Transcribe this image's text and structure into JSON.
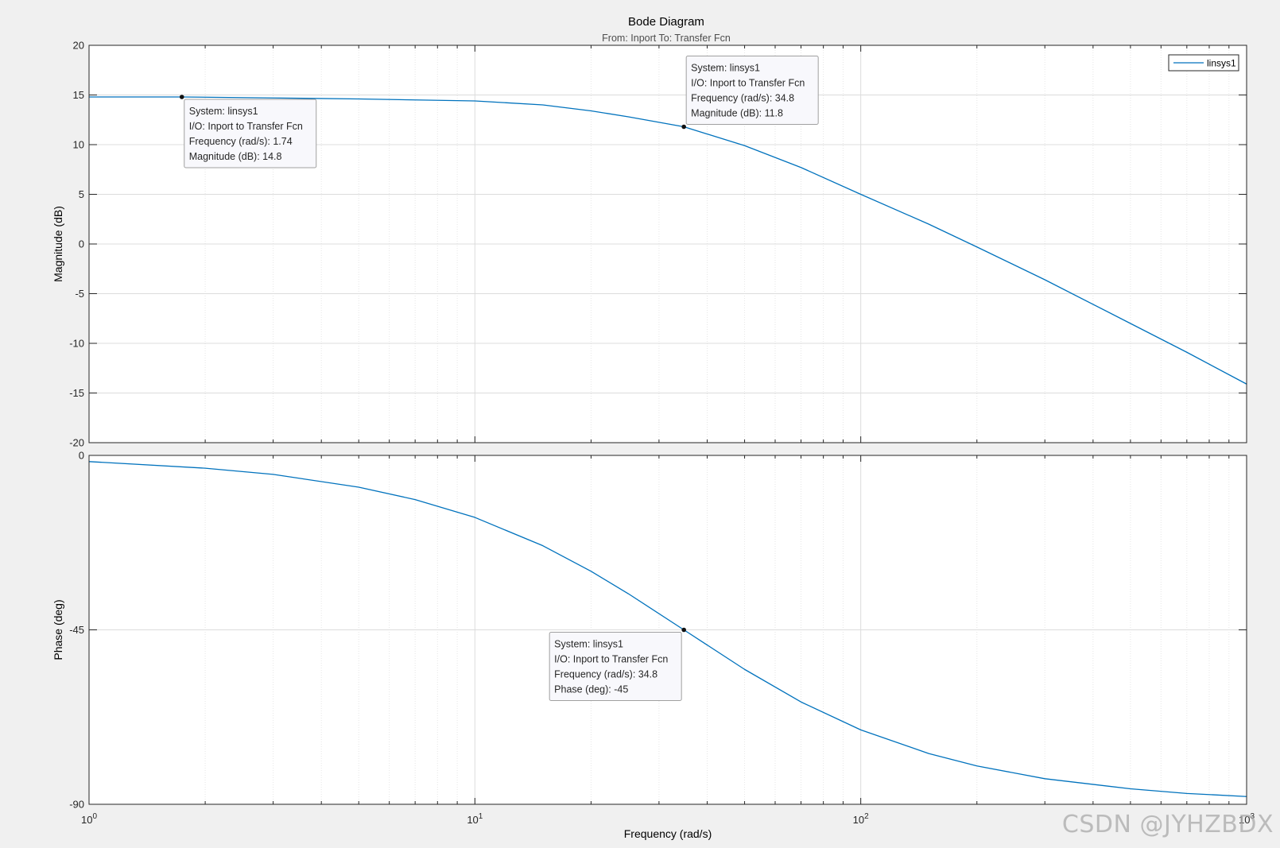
{
  "figure": {
    "title": "Bode Diagram",
    "subtitle": "From: Inport  To: Transfer Fcn",
    "watermark": "CSDN @JYHZBDX",
    "colors": {
      "background": "#f0f0f0",
      "axes_bg": "#ffffff",
      "line": "#0072bd",
      "grid": "#dcdcdc",
      "text": "#262626"
    }
  },
  "chart_data": [
    {
      "type": "line",
      "panel": "magnitude",
      "xscale": "log",
      "xlim": [
        1,
        1000
      ],
      "ylim": [
        -20,
        20
      ],
      "ylabel": "Magnitude (dB)",
      "yticks": [
        "-20",
        "-15",
        "-10",
        "-5",
        "0",
        "5",
        "10",
        "15",
        "20"
      ],
      "ytick_values": [
        -20,
        -15,
        -10,
        -5,
        0,
        5,
        10,
        15,
        20
      ],
      "grid": true,
      "legend": {
        "position": "top-right",
        "entries": [
          "linsys1"
        ]
      },
      "series": [
        {
          "name": "linsys1",
          "x": [
            1,
            1.74,
            3,
            5,
            10,
            15,
            20,
            25,
            34.8,
            50,
            70,
            100,
            150,
            200,
            300,
            500,
            700,
            1000
          ],
          "values": [
            14.8,
            14.8,
            14.7,
            14.6,
            14.4,
            14.0,
            13.4,
            12.8,
            11.8,
            9.9,
            7.7,
            5.0,
            2.0,
            -0.3,
            -3.6,
            -8.0,
            -10.9,
            -14.1
          ]
        }
      ],
      "datatips": [
        {
          "x": 1.74,
          "y": 14.8,
          "lines": [
            "System: linsys1",
            "I/O: Inport to Transfer Fcn",
            "Frequency (rad/s): 1.74",
            "Magnitude (dB): 14.8"
          ]
        },
        {
          "x": 34.8,
          "y": 11.8,
          "lines": [
            "System: linsys1",
            "I/O: Inport to Transfer Fcn",
            "Frequency (rad/s): 34.8",
            "Magnitude (dB): 11.8"
          ]
        }
      ]
    },
    {
      "type": "line",
      "panel": "phase",
      "xscale": "log",
      "xlim": [
        1,
        1000
      ],
      "ylim": [
        -90,
        0
      ],
      "ylabel": "Phase (deg)",
      "xlabel": "Frequency  (rad/s)",
      "yticks": [
        "-90",
        "-45",
        "0"
      ],
      "ytick_values": [
        -90,
        -45,
        0
      ],
      "xticks": [
        "10^0",
        "10^1",
        "10^2",
        "10^3"
      ],
      "grid": true,
      "series": [
        {
          "name": "linsys1",
          "x": [
            1,
            2,
            3,
            5,
            7,
            10,
            15,
            20,
            25,
            34.8,
            50,
            70,
            100,
            150,
            200,
            300,
            500,
            700,
            1000
          ],
          "values": [
            -1.6,
            -3.3,
            -4.9,
            -8.2,
            -11.4,
            -16.0,
            -23.3,
            -29.9,
            -35.7,
            -45.0,
            -55.2,
            -63.6,
            -70.8,
            -76.9,
            -80.1,
            -83.4,
            -86.0,
            -87.2,
            -88.0
          ]
        }
      ],
      "datatips": [
        {
          "x": 34.8,
          "y": -45,
          "lines": [
            "System: linsys1",
            "I/O: Inport to Transfer Fcn",
            "Frequency (rad/s): 34.8",
            "Phase (deg): -45"
          ]
        }
      ]
    }
  ]
}
